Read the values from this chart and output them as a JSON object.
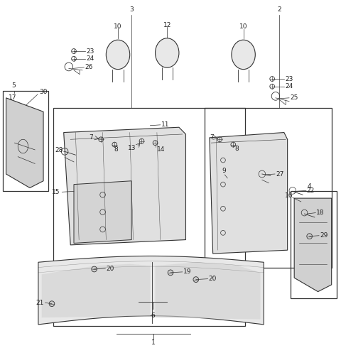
{
  "bg_color": "#ffffff",
  "line_color": "#333333",
  "font_size": 6.5
}
